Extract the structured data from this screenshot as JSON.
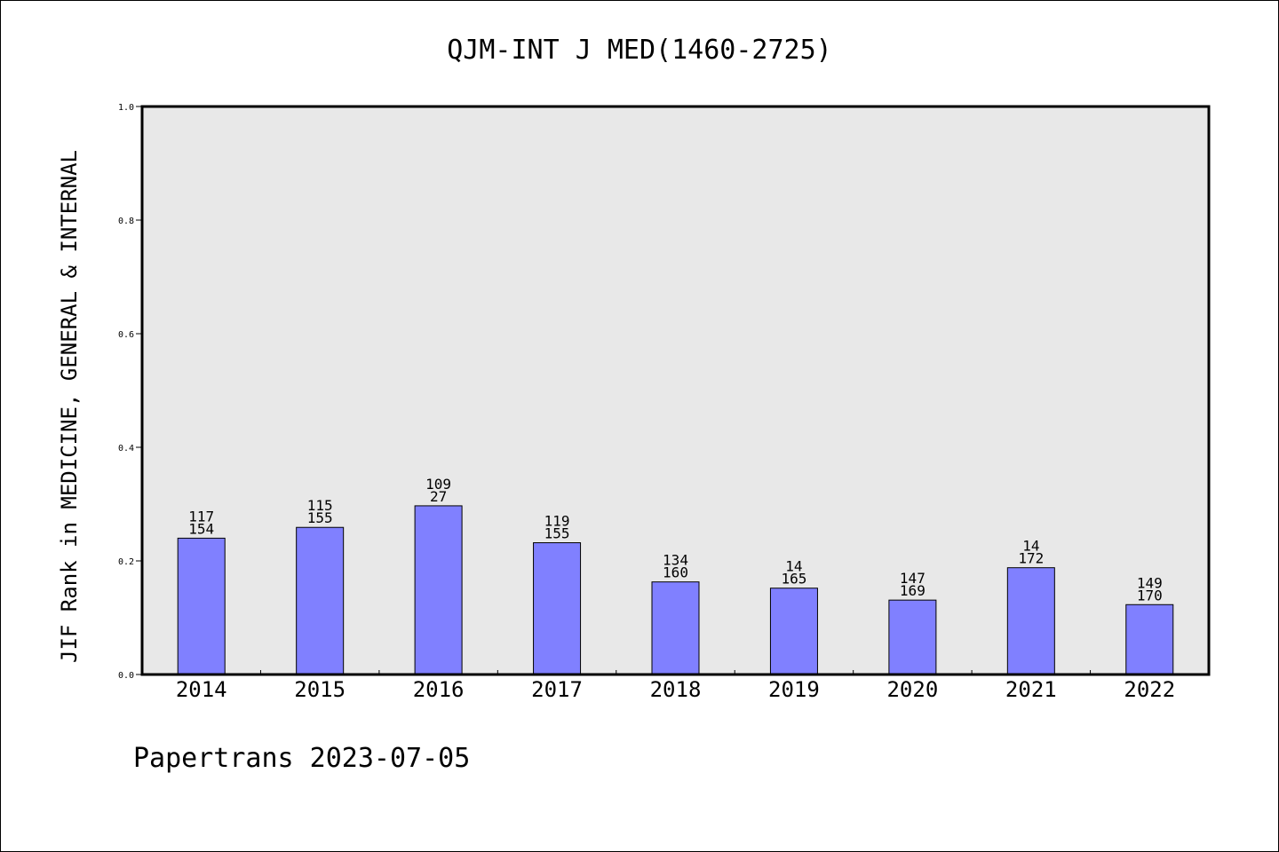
{
  "chart_data": {
    "type": "bar",
    "title": "QJM-INT J MED(1460-2725)",
    "xlabel": "",
    "ylabel": "JIF Rank in MEDICINE, GENERAL & INTERNAL",
    "ylim": [
      0,
      1.0
    ],
    "yticks": [
      "0.0",
      "0.2",
      "0.4",
      "0.6",
      "0.8",
      "1.0"
    ],
    "grid": false,
    "categories": [
      "2014",
      "2015",
      "2016",
      "2017",
      "2018",
      "2019",
      "2020",
      "2021",
      "2022"
    ],
    "values": [
      0.24,
      0.259,
      0.297,
      0.232,
      0.163,
      0.152,
      0.131,
      0.188,
      0.123
    ],
    "labels_top": [
      "117",
      "115",
      "109",
      "119",
      "134",
      "14",
      "147",
      "14",
      "149"
    ],
    "labels_bottom": [
      "154",
      "155",
      "27",
      "155",
      "160",
      "165",
      "169",
      "172",
      "170"
    ],
    "bar_color": "#8080ff",
    "plot_background": "#e8e8e8"
  },
  "footer": "Papertrans 2023-07-05"
}
